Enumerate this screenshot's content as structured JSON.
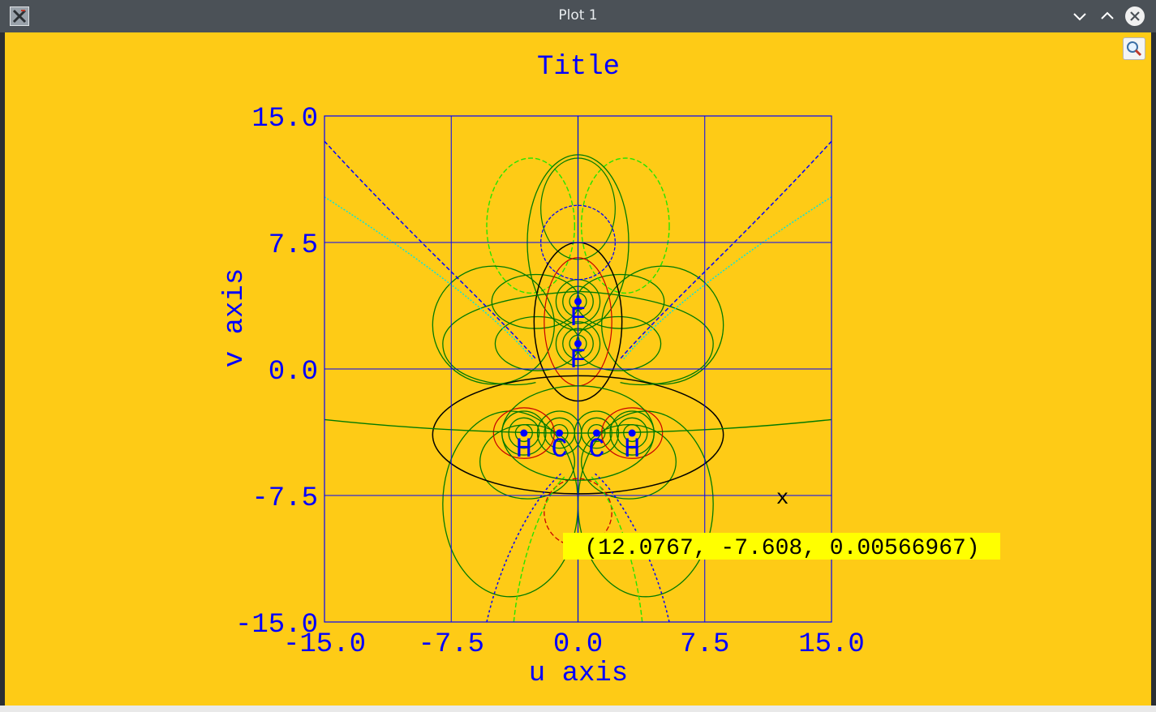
{
  "window": {
    "title": "Plot 1"
  },
  "chart_data": {
    "type": "line",
    "title": "Title",
    "xlabel": "u axis",
    "ylabel": "v axis",
    "xlim": [
      -15,
      15
    ],
    "ylim": [
      -15,
      15
    ],
    "xticks": [
      "-15.0",
      "-7.5",
      "0.0",
      "7.5",
      "15.0"
    ],
    "yticks": [
      "15.0",
      "7.5",
      "0.0",
      "-7.5",
      "-15.0"
    ],
    "grid": true,
    "atoms": [
      {
        "label": "F",
        "u": 0,
        "v": 4.0
      },
      {
        "label": "F",
        "u": 0,
        "v": 1.5
      },
      {
        "label": "H",
        "u": -3.2,
        "v": -3.8
      },
      {
        "label": "C",
        "u": -1.1,
        "v": -3.8
      },
      {
        "label": "C",
        "u": 1.1,
        "v": -3.8
      },
      {
        "label": "H",
        "u": 3.2,
        "v": -3.8
      }
    ],
    "cursor": {
      "marker": "x",
      "u": 12.1,
      "v": -7.6
    },
    "readout": "(12.0767, -7.608, 0.00566967)",
    "colors": {
      "background": "#fecb16",
      "axes": "#0000ff",
      "text": "#0000ff",
      "contour_green": "#007a00",
      "contour_lime": "#22e600",
      "contour_red": "#c80000",
      "contour_black": "#000000",
      "contour_cyan": "#00e5e5",
      "readout_bg": "#ffff00"
    }
  }
}
